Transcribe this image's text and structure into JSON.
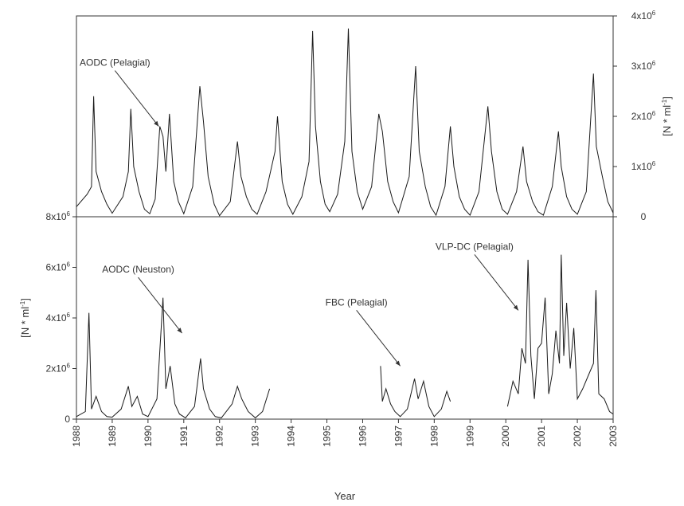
{
  "chart_data": {
    "type": "line",
    "xlabel": "Year",
    "x_ticks": [
      "1988",
      "1989",
      "1990",
      "1991",
      "1992",
      "1993",
      "1994",
      "1995",
      "1996",
      "1997",
      "1998",
      "1999",
      "2000",
      "2001",
      "2002",
      "2003"
    ],
    "xlim": [
      1988,
      2003
    ],
    "panels": [
      {
        "id": "top",
        "ylabel": "[N * ml-1]",
        "ylabel_side": "right",
        "ylim": [
          0,
          4000000
        ],
        "y_ticks": [
          {
            "v": 0,
            "label": "0"
          },
          {
            "v": 1000000,
            "label": "1x10^6"
          },
          {
            "v": 2000000,
            "label": "2x10^6"
          },
          {
            "v": 3000000,
            "label": "3x10^6"
          },
          {
            "v": 4000000,
            "label": "4x10^6"
          }
        ],
        "series": [
          {
            "name": "AODC (Pelagial)",
            "points": [
              [
                1988.0,
                200000
              ],
              [
                1988.3,
                450000
              ],
              [
                1988.42,
                600000
              ],
              [
                1988.48,
                2400000
              ],
              [
                1988.55,
                900000
              ],
              [
                1988.7,
                500000
              ],
              [
                1988.85,
                250000
              ],
              [
                1989.0,
                70000
              ],
              [
                1989.3,
                400000
              ],
              [
                1989.45,
                900000
              ],
              [
                1989.52,
                2150000
              ],
              [
                1989.6,
                1000000
              ],
              [
                1989.75,
                500000
              ],
              [
                1989.9,
                150000
              ],
              [
                1990.05,
                60000
              ],
              [
                1990.2,
                350000
              ],
              [
                1990.33,
                1800000
              ],
              [
                1990.42,
                1600000
              ],
              [
                1990.5,
                900000
              ],
              [
                1990.6,
                2050000
              ],
              [
                1990.72,
                700000
              ],
              [
                1990.85,
                300000
              ],
              [
                1991.0,
                60000
              ],
              [
                1991.25,
                600000
              ],
              [
                1991.45,
                2600000
              ],
              [
                1991.55,
                1900000
              ],
              [
                1991.68,
                800000
              ],
              [
                1991.85,
                250000
              ],
              [
                1992.0,
                20000
              ],
              [
                1992.3,
                300000
              ],
              [
                1992.5,
                1500000
              ],
              [
                1992.6,
                800000
              ],
              [
                1992.75,
                400000
              ],
              [
                1992.9,
                150000
              ],
              [
                1993.05,
                50000
              ],
              [
                1993.3,
                500000
              ],
              [
                1993.55,
                1300000
              ],
              [
                1993.62,
                2000000
              ],
              [
                1993.75,
                700000
              ],
              [
                1993.9,
                250000
              ],
              [
                1994.05,
                50000
              ],
              [
                1994.3,
                400000
              ],
              [
                1994.5,
                1100000
              ],
              [
                1994.6,
                3700000
              ],
              [
                1994.68,
                1800000
              ],
              [
                1994.82,
                700000
              ],
              [
                1994.95,
                250000
              ],
              [
                1995.08,
                100000
              ],
              [
                1995.3,
                450000
              ],
              [
                1995.5,
                1500000
              ],
              [
                1995.6,
                3750000
              ],
              [
                1995.7,
                1300000
              ],
              [
                1995.85,
                500000
              ],
              [
                1996.0,
                150000
              ],
              [
                1996.25,
                600000
              ],
              [
                1996.45,
                2050000
              ],
              [
                1996.55,
                1700000
              ],
              [
                1996.7,
                700000
              ],
              [
                1996.85,
                300000
              ],
              [
                1997.0,
                80000
              ],
              [
                1997.3,
                800000
              ],
              [
                1997.48,
                3000000
              ],
              [
                1997.58,
                1300000
              ],
              [
                1997.75,
                600000
              ],
              [
                1997.9,
                200000
              ],
              [
                1998.05,
                30000
              ],
              [
                1998.3,
                600000
              ],
              [
                1998.45,
                1800000
              ],
              [
                1998.55,
                1000000
              ],
              [
                1998.7,
                400000
              ],
              [
                1998.85,
                150000
              ],
              [
                1999.0,
                30000
              ],
              [
                1999.25,
                500000
              ],
              [
                1999.5,
                2200000
              ],
              [
                1999.6,
                1300000
              ],
              [
                1999.75,
                500000
              ],
              [
                1999.9,
                150000
              ],
              [
                2000.05,
                50000
              ],
              [
                2000.3,
                500000
              ],
              [
                2000.48,
                1400000
              ],
              [
                2000.58,
                700000
              ],
              [
                2000.75,
                300000
              ],
              [
                2000.9,
                100000
              ],
              [
                2001.05,
                30000
              ],
              [
                2001.3,
                600000
              ],
              [
                2001.47,
                1700000
              ],
              [
                2001.55,
                1000000
              ],
              [
                2001.7,
                400000
              ],
              [
                2001.85,
                150000
              ],
              [
                2002.0,
                50000
              ],
              [
                2002.25,
                500000
              ],
              [
                2002.45,
                2850000
              ],
              [
                2002.53,
                1400000
              ],
              [
                2002.7,
                800000
              ],
              [
                2002.85,
                300000
              ],
              [
                2003.0,
                80000
              ]
            ]
          }
        ],
        "annotations": [
          {
            "text": "AODC (Pelagial)",
            "anchor": [
              1990.3,
              1800000
            ]
          }
        ]
      },
      {
        "id": "bottom",
        "ylabel": "[N * ml-1]",
        "ylabel_side": "left",
        "ylim": [
          0,
          8000000
        ],
        "y_ticks": [
          {
            "v": 0,
            "label": "0"
          },
          {
            "v": 2000000,
            "label": "2x10^6"
          },
          {
            "v": 4000000,
            "label": "4x10^6"
          },
          {
            "v": 6000000,
            "label": "6x10^6"
          },
          {
            "v": 8000000,
            "label": "8x10^6"
          }
        ],
        "series": [
          {
            "name": "AODC (Neuston)",
            "points": [
              [
                1988.0,
                100000
              ],
              [
                1988.25,
                300000
              ],
              [
                1988.35,
                4200000
              ],
              [
                1988.42,
                400000
              ],
              [
                1988.55,
                900000
              ],
              [
                1988.7,
                300000
              ],
              [
                1988.85,
                100000
              ],
              [
                1989.0,
                80000
              ],
              [
                1989.25,
                400000
              ],
              [
                1989.45,
                1300000
              ],
              [
                1989.55,
                500000
              ],
              [
                1989.7,
                900000
              ],
              [
                1989.85,
                200000
              ],
              [
                1990.0,
                100000
              ],
              [
                1990.25,
                800000
              ],
              [
                1990.42,
                4800000
              ],
              [
                1990.5,
                1200000
              ],
              [
                1990.62,
                2100000
              ],
              [
                1990.75,
                600000
              ],
              [
                1990.88,
                200000
              ],
              [
                1991.05,
                50000
              ],
              [
                1991.3,
                500000
              ],
              [
                1991.47,
                2400000
              ],
              [
                1991.55,
                1200000
              ],
              [
                1991.72,
                400000
              ],
              [
                1991.88,
                100000
              ],
              [
                1992.05,
                50000
              ],
              [
                1992.35,
                600000
              ],
              [
                1992.5,
                1300000
              ],
              [
                1992.62,
                800000
              ],
              [
                1992.8,
                300000
              ],
              [
                1993.0,
                50000
              ],
              [
                1993.2,
                300000
              ],
              [
                1993.4,
                1200000
              ]
            ]
          },
          {
            "name": "FBC (Pelagial)",
            "points": [
              [
                1996.5,
                2100000
              ],
              [
                1996.55,
                700000
              ],
              [
                1996.65,
                1200000
              ],
              [
                1996.78,
                600000
              ],
              [
                1996.9,
                300000
              ],
              [
                1997.05,
                100000
              ],
              [
                1997.25,
                400000
              ],
              [
                1997.45,
                1600000
              ],
              [
                1997.55,
                800000
              ],
              [
                1997.7,
                1500000
              ],
              [
                1997.85,
                500000
              ],
              [
                1998.0,
                100000
              ],
              [
                1998.2,
                400000
              ],
              [
                1998.35,
                1100000
              ],
              [
                1998.45,
                700000
              ]
            ]
          },
          {
            "name": "VLP-DC (Pelagial)",
            "points": [
              [
                2000.05,
                500000
              ],
              [
                2000.2,
                1500000
              ],
              [
                2000.35,
                1000000
              ],
              [
                2000.45,
                2800000
              ],
              [
                2000.55,
                2200000
              ],
              [
                2000.62,
                6300000
              ],
              [
                2000.7,
                2500000
              ],
              [
                2000.8,
                800000
              ],
              [
                2000.9,
                2800000
              ],
              [
                2001.0,
                3000000
              ],
              [
                2001.1,
                4800000
              ],
              [
                2001.2,
                1000000
              ],
              [
                2001.3,
                1800000
              ],
              [
                2001.4,
                3500000
              ],
              [
                2001.5,
                2200000
              ],
              [
                2001.55,
                6500000
              ],
              [
                2001.62,
                2500000
              ],
              [
                2001.7,
                4600000
              ],
              [
                2001.8,
                2000000
              ],
              [
                2001.9,
                3600000
              ],
              [
                2002.0,
                800000
              ],
              [
                2002.15,
                1200000
              ],
              [
                2002.3,
                1700000
              ],
              [
                2002.45,
                2200000
              ],
              [
                2002.52,
                5100000
              ],
              [
                2002.6,
                1000000
              ],
              [
                2002.75,
                800000
              ],
              [
                2002.9,
                300000
              ],
              [
                2003.0,
                200000
              ]
            ]
          }
        ],
        "annotations": [
          {
            "text": "AODC (Neuston)",
            "anchor": [
              1990.95,
              3400000
            ]
          },
          {
            "text": "FBC (Pelagial)",
            "anchor": [
              1997.05,
              2100000
            ]
          },
          {
            "text": "VLP-DC (Pelagial)",
            "anchor": [
              2000.35,
              4300000
            ]
          }
        ]
      }
    ]
  }
}
